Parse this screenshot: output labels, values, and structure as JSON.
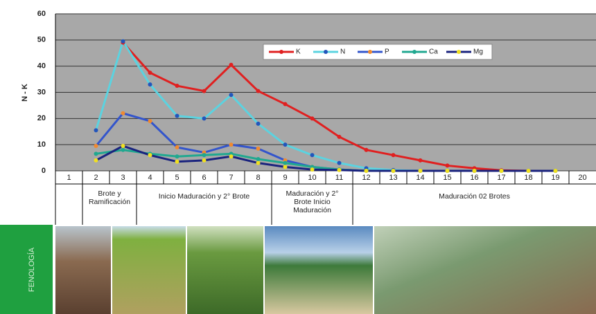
{
  "chart_data": {
    "type": "line",
    "y_label": "N - K",
    "categories": [
      "1",
      "2",
      "3",
      "4",
      "5",
      "6",
      "7",
      "8",
      "9",
      "10",
      "11",
      "12",
      "13",
      "14",
      "15",
      "16",
      "17",
      "18",
      "19",
      "20"
    ],
    "ylim": [
      0,
      60
    ],
    "yticks": [
      0,
      10,
      20,
      30,
      40,
      50,
      60
    ],
    "grid": true,
    "series": [
      {
        "name": "K",
        "color": "#e02020",
        "marker_color": "#e02020",
        "values": [
          null,
          null,
          49,
          37.5,
          32.5,
          30.5,
          40.5,
          30.5,
          25.5,
          20,
          13,
          8,
          6,
          4,
          2,
          1,
          0.2,
          0,
          null,
          null
        ]
      },
      {
        "name": "N",
        "color": "#5bd3e0",
        "marker_color": "#2255bb",
        "values": [
          null,
          15.5,
          49.5,
          33,
          21,
          20,
          29,
          18,
          10,
          6,
          3,
          1,
          0.3,
          0,
          0,
          0,
          0,
          0,
          0,
          null
        ]
      },
      {
        "name": "P",
        "color": "#3355cc",
        "marker_color": "#f08a30",
        "values": [
          null,
          9.5,
          22,
          19,
          9,
          7,
          10,
          8.5,
          4,
          1.5,
          0.5,
          0,
          0,
          0,
          0,
          0,
          0,
          0,
          0,
          null
        ]
      },
      {
        "name": "Ca",
        "color": "#20a890",
        "marker_color": "#20a890",
        "values": [
          null,
          6.5,
          8,
          6.5,
          5.5,
          6,
          6.5,
          4.5,
          3,
          1.5,
          0.5,
          0,
          0,
          0,
          0,
          0,
          0,
          0,
          0,
          null
        ]
      },
      {
        "name": "Mg",
        "color": "#1a237e",
        "marker_color": "#f0e020",
        "values": [
          null,
          4,
          9.5,
          6,
          3.5,
          4,
          5.5,
          3,
          1.5,
          0.5,
          0.3,
          0,
          0,
          0,
          0,
          0,
          0,
          0,
          0,
          null
        ]
      }
    ],
    "phases": [
      {
        "label": "Brote y Ramificación",
        "from": 2,
        "to": 3
      },
      {
        "label": "Inicio Maduración y 2° Brote",
        "from": 4,
        "to": 8
      },
      {
        "label": "Maduración y 2° Brote Inicio Maduración",
        "from": 9,
        "to": 11
      },
      {
        "label": "Maduración 02 Brotes",
        "from": 12,
        "to": 20
      }
    ],
    "side_label": "FENOLOGÍA"
  }
}
